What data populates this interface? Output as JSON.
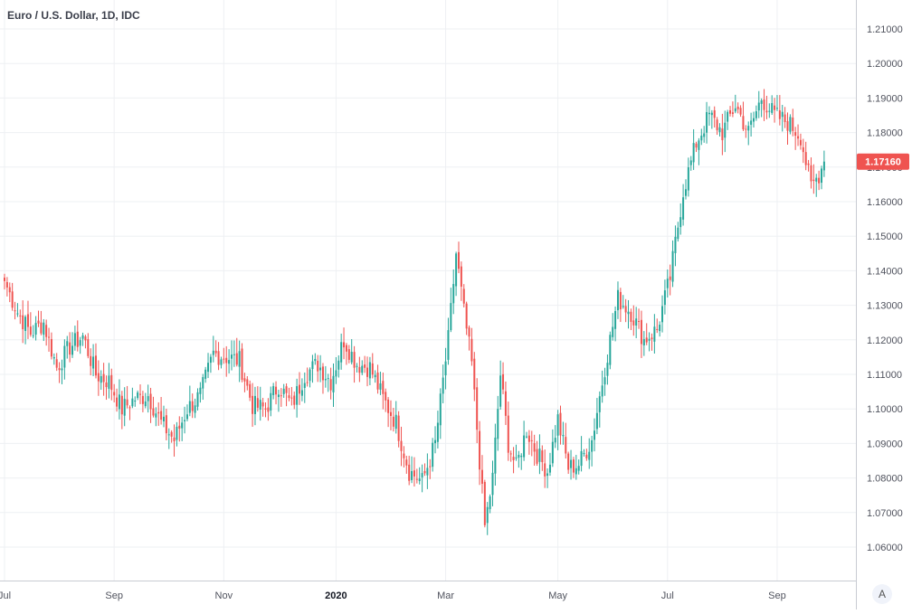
{
  "chart_data": {
    "type": "candlestick",
    "title": "Euro / U.S. Dollar, 1D, IDC",
    "ylim": [
      1.0525,
      1.2175
    ],
    "y_ticks": [
      "1.21000",
      "1.20000",
      "1.19000",
      "1.18000",
      "1.17000",
      "1.16000",
      "1.15000",
      "1.14000",
      "1.13000",
      "1.12000",
      "1.11000",
      "1.10000",
      "1.09000",
      "1.08000",
      "1.07000",
      "1.06000"
    ],
    "x_ticks": [
      "Jul",
      "Sep",
      "Nov",
      "2020",
      "Mar",
      "May",
      "Jul",
      "Sep"
    ],
    "last_price": "1.17160",
    "up_color": "#26a69a",
    "down_color": "#ef5350",
    "grid": true,
    "close_anchors": [
      [
        0,
        1.137
      ],
      [
        5,
        1.128
      ],
      [
        10,
        1.122
      ],
      [
        15,
        1.125
      ],
      [
        20,
        1.112
      ],
      [
        25,
        1.118
      ],
      [
        30,
        1.121
      ],
      [
        35,
        1.11
      ],
      [
        40,
        1.108
      ],
      [
        45,
        1.1
      ],
      [
        50,
        1.103
      ],
      [
        55,
        1.104
      ],
      [
        60,
        1.096
      ],
      [
        65,
        1.091
      ],
      [
        70,
        1.1
      ],
      [
        75,
        1.104
      ],
      [
        80,
        1.116
      ],
      [
        85,
        1.115
      ],
      [
        90,
        1.114
      ],
      [
        95,
        1.101
      ],
      [
        100,
        1.1
      ],
      [
        105,
        1.107
      ],
      [
        110,
        1.101
      ],
      [
        115,
        1.11
      ],
      [
        120,
        1.113
      ],
      [
        125,
        1.108
      ],
      [
        130,
        1.12
      ],
      [
        135,
        1.113
      ],
      [
        140,
        1.112
      ],
      [
        145,
        1.103
      ],
      [
        150,
        1.096
      ],
      [
        155,
        1.082
      ],
      [
        160,
        1.079
      ],
      [
        165,
        1.09
      ],
      [
        170,
        1.12
      ],
      [
        173,
        1.145
      ],
      [
        176,
        1.128
      ],
      [
        179,
        1.113
      ],
      [
        182,
        1.085
      ],
      [
        184,
        1.066
      ],
      [
        187,
        1.08
      ],
      [
        190,
        1.11
      ],
      [
        193,
        1.09
      ],
      [
        196,
        1.083
      ],
      [
        200,
        1.094
      ],
      [
        204,
        1.087
      ],
      [
        208,
        1.082
      ],
      [
        212,
        1.097
      ],
      [
        216,
        1.083
      ],
      [
        220,
        1.084
      ],
      [
        225,
        1.091
      ],
      [
        230,
        1.112
      ],
      [
        235,
        1.132
      ],
      [
        240,
        1.128
      ],
      [
        245,
        1.12
      ],
      [
        250,
        1.123
      ],
      [
        255,
        1.138
      ],
      [
        260,
        1.163
      ],
      [
        265,
        1.177
      ],
      [
        270,
        1.185
      ],
      [
        275,
        1.18
      ],
      [
        280,
        1.188
      ],
      [
        285,
        1.18
      ],
      [
        290,
        1.19
      ],
      [
        295,
        1.185
      ],
      [
        300,
        1.183
      ],
      [
        305,
        1.179
      ],
      [
        309,
        1.164
      ],
      [
        312,
        1.168
      ],
      [
        314,
        1.1716
      ]
    ],
    "x_axis_month_indices": [
      0,
      42,
      84,
      127,
      169,
      212,
      254,
      296
    ]
  }
}
